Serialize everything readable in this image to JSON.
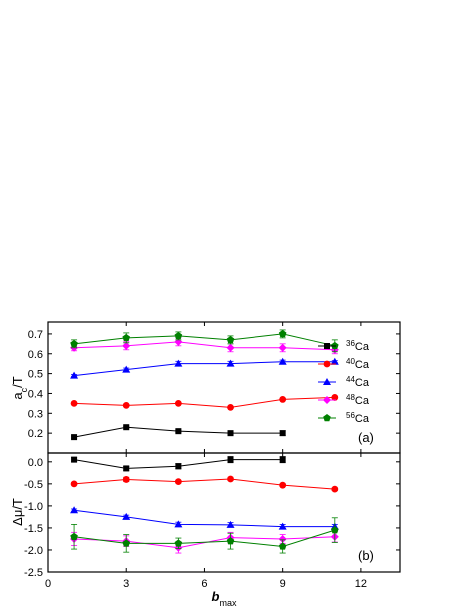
{
  "chart_data": [
    {
      "type": "line",
      "panel_label": "(a)",
      "ylabel_main": "a",
      "ylabel_sub": "c",
      "ylabel_rest": "/T",
      "xlim": [
        0,
        13.5
      ],
      "ylim": [
        0.1,
        0.76
      ],
      "yticks": [
        0.2,
        0.3,
        0.4,
        0.5,
        0.6,
        0.7
      ],
      "ytick_labels": [
        "0.2",
        "0.3",
        "0.4",
        "0.5",
        "0.6",
        "0.7"
      ],
      "legend_position": "right",
      "series": [
        {
          "name_mass": "36",
          "name_elem": "Ca",
          "color": "#000000",
          "marker": "square",
          "x": [
            1,
            3,
            5,
            7,
            9
          ],
          "y": [
            0.18,
            0.23,
            0.21,
            0.2,
            0.2
          ],
          "err": [
            0.005,
            0.005,
            0.005,
            0.005,
            0.012
          ]
        },
        {
          "name_mass": "40",
          "name_elem": "Ca",
          "color": "#ff0000",
          "marker": "circle",
          "x": [
            1,
            3,
            5,
            7,
            9,
            11
          ],
          "y": [
            0.35,
            0.34,
            0.35,
            0.33,
            0.37,
            0.38
          ],
          "err": [
            0.005,
            0.005,
            0.005,
            0.005,
            0.005,
            0.005
          ]
        },
        {
          "name_mass": "44",
          "name_elem": "Ca",
          "color": "#0000ff",
          "marker": "triangle",
          "x": [
            1,
            3,
            5,
            7,
            9,
            11
          ],
          "y": [
            0.49,
            0.52,
            0.55,
            0.55,
            0.56,
            0.56
          ],
          "err": [
            0.005,
            0.008,
            0.012,
            0.012,
            0.008,
            0.005
          ]
        },
        {
          "name_mass": "48",
          "name_elem": "Ca",
          "color": "#ff00ff",
          "marker": "diamond",
          "x": [
            1,
            3,
            5,
            7,
            9,
            11
          ],
          "y": [
            0.63,
            0.64,
            0.66,
            0.63,
            0.63,
            0.62
          ],
          "err": [
            0.015,
            0.02,
            0.02,
            0.02,
            0.02,
            0.02
          ]
        },
        {
          "name_mass": "56",
          "name_elem": "Ca",
          "color": "#008000",
          "marker": "pentagon",
          "x": [
            1,
            3,
            5,
            7,
            9,
            11
          ],
          "y": [
            0.65,
            0.68,
            0.69,
            0.67,
            0.7,
            0.64
          ],
          "err": [
            0.02,
            0.025,
            0.02,
            0.02,
            0.02,
            0.03
          ]
        }
      ]
    },
    {
      "type": "line",
      "panel_label": "(b)",
      "ylabel": "Δμ/T",
      "xlabel_main": "b",
      "xlabel_sub": "max",
      "xlim": [
        0,
        13.5
      ],
      "ylim": [
        -2.5,
        0.2
      ],
      "xticks": [
        0,
        3,
        6,
        9,
        12
      ],
      "xtick_labels": [
        "0",
        "3",
        "6",
        "9",
        "12"
      ],
      "yticks": [
        -2.5,
        -2.0,
        -1.5,
        -1.0,
        -0.5,
        0.0
      ],
      "ytick_labels": [
        "-2.5",
        "-2.0",
        "-1.5",
        "-1.0",
        "-0.5",
        "0.0"
      ],
      "series": [
        {
          "color": "#000000",
          "marker": "square",
          "x": [
            1,
            3,
            5,
            7,
            9
          ],
          "y": [
            0.05,
            -0.15,
            -0.1,
            0.05,
            0.05
          ],
          "err": [
            0.05,
            0.04,
            0.06,
            0.07,
            0.07
          ]
        },
        {
          "color": "#ff0000",
          "marker": "circle",
          "x": [
            1,
            3,
            5,
            7,
            9,
            11
          ],
          "y": [
            -0.5,
            -0.4,
            -0.45,
            -0.39,
            -0.53,
            -0.62
          ],
          "err": [
            0.03,
            0.05,
            0.03,
            0.03,
            0.03,
            0.03
          ]
        },
        {
          "color": "#0000ff",
          "marker": "triangle",
          "x": [
            1,
            3,
            5,
            7,
            9,
            11
          ],
          "y": [
            -1.1,
            -1.25,
            -1.42,
            -1.43,
            -1.47,
            -1.47
          ],
          "err": [
            0.03,
            0.04,
            0.05,
            0.05,
            0.05,
            0.05
          ]
        },
        {
          "color": "#ff00ff",
          "marker": "diamond",
          "x": [
            1,
            3,
            5,
            7,
            9,
            11
          ],
          "y": [
            -1.75,
            -1.8,
            -1.95,
            -1.72,
            -1.75,
            -1.7
          ],
          "err": [
            0.15,
            0.12,
            0.12,
            0.12,
            0.1,
            0.12
          ]
        },
        {
          "color": "#008000",
          "marker": "pentagon",
          "x": [
            1,
            3,
            5,
            7,
            9,
            11
          ],
          "y": [
            -1.7,
            -1.85,
            -1.85,
            -1.8,
            -1.92,
            -1.55
          ],
          "err": [
            0.28,
            0.2,
            0.12,
            0.18,
            0.15,
            0.28
          ]
        }
      ]
    }
  ]
}
